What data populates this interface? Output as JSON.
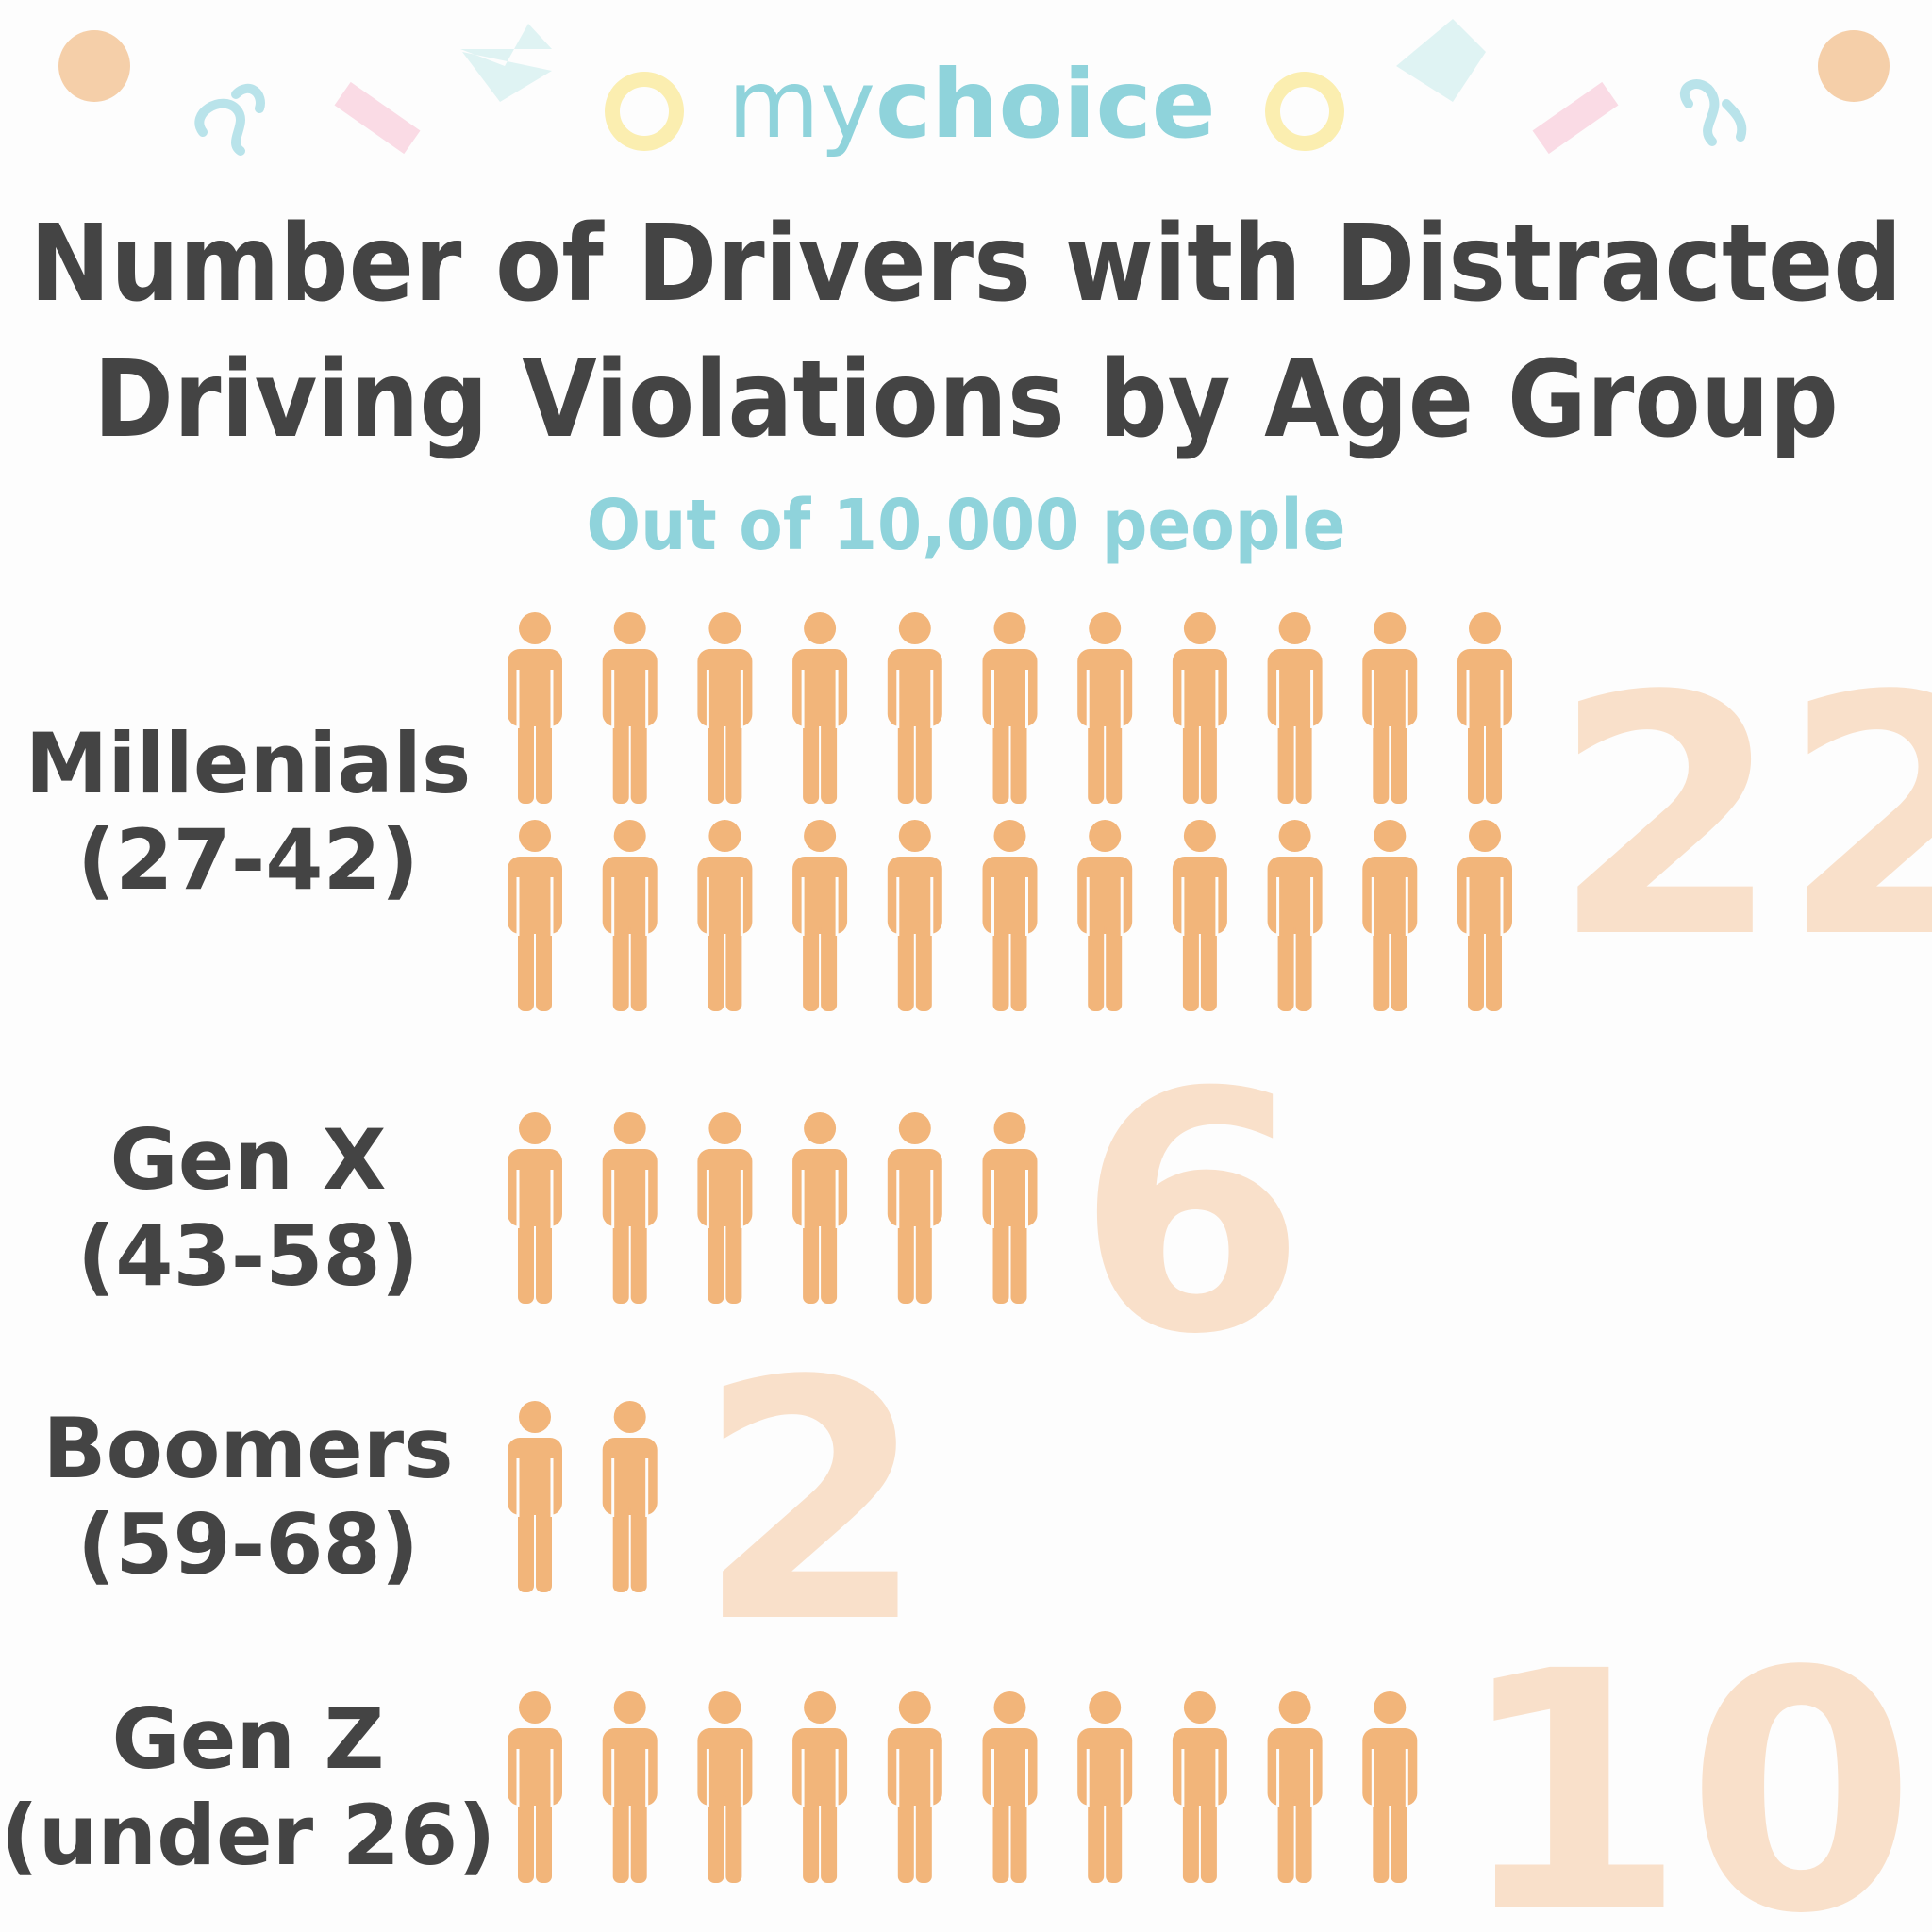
{
  "logo": [
    "my",
    "choice"
  ],
  "chart_data": {
    "type": "pictogram",
    "title": [
      "Number of Drivers with Distracted",
      "Driving Violations by Age Group"
    ],
    "subtitle": "Out of 10,000 people",
    "categories": [
      "Millenials",
      "Gen X",
      "Boomers",
      "Gen Z"
    ],
    "age_ranges": [
      "(27-42)",
      "(43-58)",
      "(59-68)",
      "(under 26)"
    ],
    "values": [
      22,
      6,
      2,
      10
    ],
    "icons_per_row": 11,
    "color": "#f2b57a",
    "label_color": "#f9e0ca"
  }
}
